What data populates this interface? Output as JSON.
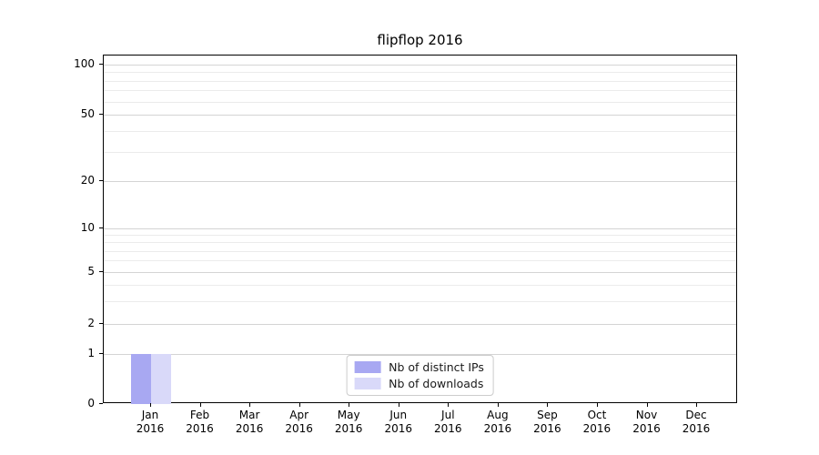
{
  "figure": {
    "background": "#ffffff"
  },
  "chart_data": {
    "type": "bar",
    "title": "flipflop 2016",
    "categories": [
      {
        "month": "Jan",
        "year": "2016"
      },
      {
        "month": "Feb",
        "year": "2016"
      },
      {
        "month": "Mar",
        "year": "2016"
      },
      {
        "month": "Apr",
        "year": "2016"
      },
      {
        "month": "May",
        "year": "2016"
      },
      {
        "month": "Jun",
        "year": "2016"
      },
      {
        "month": "Jul",
        "year": "2016"
      },
      {
        "month": "Aug",
        "year": "2016"
      },
      {
        "month": "Sep",
        "year": "2016"
      },
      {
        "month": "Oct",
        "year": "2016"
      },
      {
        "month": "Nov",
        "year": "2016"
      },
      {
        "month": "Dec",
        "year": "2016"
      }
    ],
    "series": [
      {
        "name": "Nb of distinct IPs",
        "color": "#a8a8f2",
        "values": [
          1,
          0,
          0,
          0,
          0,
          0,
          0,
          0,
          0,
          0,
          0,
          0
        ]
      },
      {
        "name": "Nb of downloads",
        "color": "#d9d9f9",
        "values": [
          1,
          0,
          0,
          0,
          0,
          0,
          0,
          0,
          0,
          0,
          0,
          0
        ]
      }
    ],
    "yscale": "symlog",
    "ytick_values": [
      0,
      1,
      2,
      5,
      10,
      20,
      50,
      100
    ],
    "ytick_labels": [
      "0",
      "1",
      "2",
      "5",
      "10",
      "20",
      "50",
      "100"
    ],
    "ylim": [
      0,
      110
    ],
    "grid": true,
    "legend_position": "lower center"
  },
  "colors": {
    "major_grid": "#d4d4d4",
    "minor_grid": "#ebebeb",
    "axis": "#000000"
  }
}
